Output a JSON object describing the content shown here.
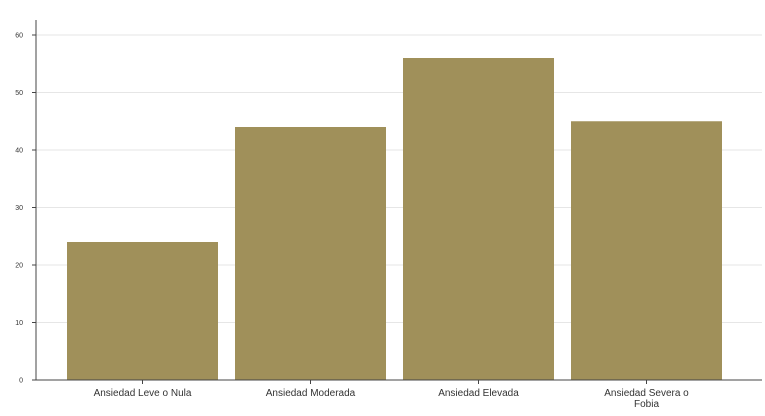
{
  "chart_data": {
    "type": "bar",
    "title": "",
    "xlabel": "",
    "ylabel": "",
    "categories": [
      [
        "Ansiedad Leve o Nula"
      ],
      [
        "Ansiedad Moderada"
      ],
      [
        "Ansiedad Elevada"
      ],
      [
        "Ansiedad Severa o",
        "Fobia"
      ]
    ],
    "values": [
      24,
      44,
      56,
      45
    ],
    "ylim": [
      0,
      60
    ],
    "yticks": [
      0,
      10,
      20,
      30,
      40,
      50,
      60
    ],
    "ytick_labels": [
      "0",
      "10",
      "20",
      "30",
      "40",
      "50",
      "60"
    ],
    "grid": true,
    "legend": "none",
    "colors": {
      "bar": "#a0905a",
      "grid": "#e6e6e6",
      "axis": "#444444",
      "text": "#333333"
    }
  }
}
